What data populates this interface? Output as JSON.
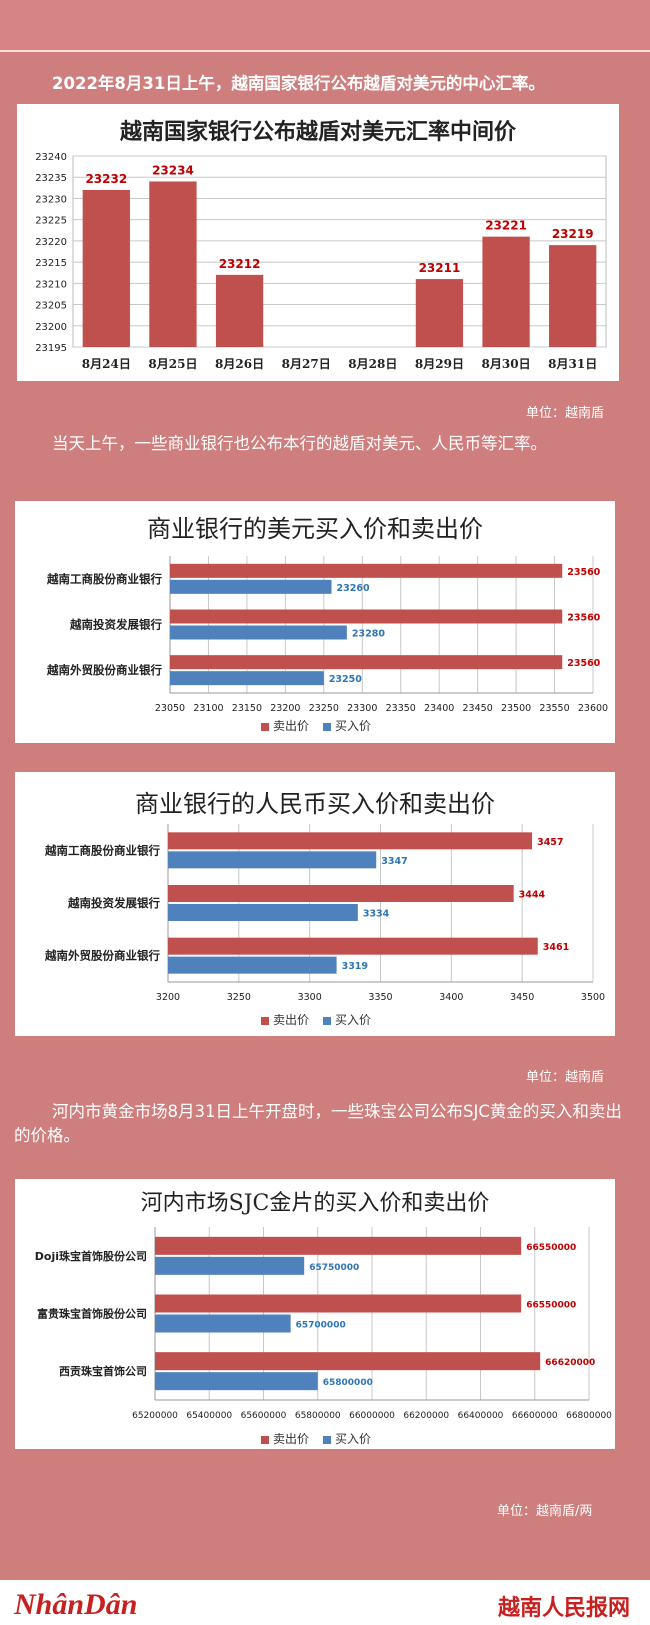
{
  "intro1": "2022年8月31日上午，越南国家银行公布越盾对美元的中心汇率。",
  "unit1": "单位：越南盾",
  "intro2": "当天上午，一些商业银行也公布本行的越盾对美元、人民币等汇率。",
  "unit2": "单位：越南盾",
  "intro3": "河内市黄金市场8月31日上午开盘时，一些珠宝公司公布SJC黄金的买入和卖出的价格。",
  "unit3": "单位：越南盾/两",
  "footer": {
    "left_logo": "NhânDân",
    "right_logo": "越南人民报网"
  },
  "colors": {
    "sell": "#c0504d",
    "buy": "#4f81bd",
    "sell_label": "#c00000",
    "buy_label": "#2e75b6"
  },
  "chart_data": [
    {
      "type": "bar",
      "title": "越南国家银行公布越盾对美元汇率中间价",
      "categories": [
        "8月24日",
        "8月25日",
        "8月26日",
        "8月27日",
        "8月28日",
        "8月29日",
        "8月30日",
        "8月31日"
      ],
      "values": [
        23232,
        23234,
        23212,
        null,
        null,
        23211,
        23221,
        23219
      ],
      "ylim": [
        23195,
        23240
      ],
      "yticks": [
        23195,
        23200,
        23205,
        23210,
        23215,
        23220,
        23225,
        23230,
        23235,
        23240
      ],
      "grid": true
    },
    {
      "type": "bar",
      "orientation": "horizontal",
      "title": "商业银行的美元买入价和卖出价",
      "categories": [
        "越南工商股份商业银行",
        "越南投资发展银行",
        "越南外贸股份商业银行"
      ],
      "series": [
        {
          "name": "卖出价",
          "values": [
            23560,
            23560,
            23560
          ]
        },
        {
          "name": "买入价",
          "values": [
            23260,
            23280,
            23250
          ]
        }
      ],
      "xlim": [
        23050,
        23600
      ],
      "xticks": [
        23050,
        23100,
        23150,
        23200,
        23250,
        23300,
        23350,
        23400,
        23450,
        23500,
        23550,
        23600
      ],
      "legend": "bottom",
      "grid": true
    },
    {
      "type": "bar",
      "orientation": "horizontal",
      "title": "商业银行的人民币买入价和卖出价",
      "categories": [
        "越南工商股份商业银行",
        "越南投资发展银行",
        "越南外贸股份商业银行"
      ],
      "series": [
        {
          "name": "卖出价",
          "values": [
            3457,
            3444,
            3461
          ]
        },
        {
          "name": "买入价",
          "values": [
            3347,
            3334,
            3319
          ]
        }
      ],
      "xlim": [
        3200,
        3500
      ],
      "xticks": [
        3200,
        3250,
        3300,
        3350,
        3400,
        3450,
        3500
      ],
      "legend": "bottom",
      "grid": true
    },
    {
      "type": "bar",
      "orientation": "horizontal",
      "title": "河内市场SJC金片的买入价和卖出价",
      "categories": [
        "Doji珠宝首饰股份公司",
        "富贵珠宝首饰股份公司",
        "西贡珠宝首饰公司"
      ],
      "series": [
        {
          "name": "卖出价",
          "values": [
            66550000,
            66550000,
            66620000
          ]
        },
        {
          "name": "买入价",
          "values": [
            65750000,
            65700000,
            65800000
          ]
        }
      ],
      "xlim": [
        65200000,
        66800000
      ],
      "xticks": [
        65200000,
        65400000,
        65600000,
        65800000,
        66000000,
        66200000,
        66400000,
        66600000,
        66800000
      ],
      "legend": "bottom",
      "grid": true
    }
  ]
}
